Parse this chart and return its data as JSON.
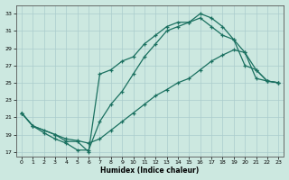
{
  "xlabel": "Humidex (Indice chaleur)",
  "bg_color": "#cce8e0",
  "grid_color": "#b0d4cc",
  "line_color": "#1a7060",
  "xlim": [
    -0.5,
    23.5
  ],
  "ylim": [
    16.5,
    34
  ],
  "xticks": [
    0,
    1,
    2,
    3,
    4,
    5,
    6,
    7,
    8,
    9,
    10,
    11,
    12,
    13,
    14,
    15,
    16,
    17,
    18,
    19,
    20,
    21,
    22,
    23
  ],
  "yticks": [
    17,
    19,
    21,
    23,
    25,
    27,
    29,
    31,
    33
  ],
  "line1_x": [
    0,
    1,
    2,
    3,
    4,
    5,
    6,
    7,
    8,
    9,
    10,
    11,
    12,
    13,
    14,
    15,
    16,
    17,
    18,
    19,
    20,
    21,
    22,
    23
  ],
  "line1_y": [
    21.5,
    20.0,
    19.2,
    18.5,
    18.0,
    17.2,
    17.2,
    20.5,
    22.5,
    24.0,
    26.0,
    28.0,
    29.5,
    31.0,
    31.5,
    32.0,
    33.0,
    32.5,
    31.5,
    30.0,
    27.0,
    26.5,
    25.2,
    25.0
  ],
  "line2_x": [
    0,
    1,
    2,
    3,
    4,
    5,
    6,
    7,
    8,
    9,
    10,
    11,
    12,
    13,
    14,
    15,
    16,
    17,
    18,
    19,
    20,
    21,
    22,
    23
  ],
  "line2_y": [
    21.5,
    20.0,
    19.5,
    19.0,
    18.5,
    18.3,
    18.0,
    18.5,
    19.5,
    20.5,
    21.5,
    22.5,
    23.5,
    24.2,
    25.0,
    25.5,
    26.5,
    27.5,
    28.2,
    28.8,
    28.5,
    25.5,
    25.2,
    25.0
  ],
  "line3_x": [
    0,
    1,
    3,
    4,
    5,
    6,
    7,
    8,
    9,
    10,
    11,
    12,
    13,
    14,
    15,
    16,
    17,
    18,
    19,
    20,
    21,
    22,
    23
  ],
  "line3_y": [
    21.5,
    20.0,
    19.0,
    18.2,
    18.2,
    17.0,
    26.0,
    26.5,
    27.5,
    28.0,
    29.5,
    30.5,
    31.5,
    32.0,
    32.0,
    32.5,
    31.5,
    30.5,
    30.0,
    28.5,
    26.5,
    25.2,
    25.0
  ]
}
